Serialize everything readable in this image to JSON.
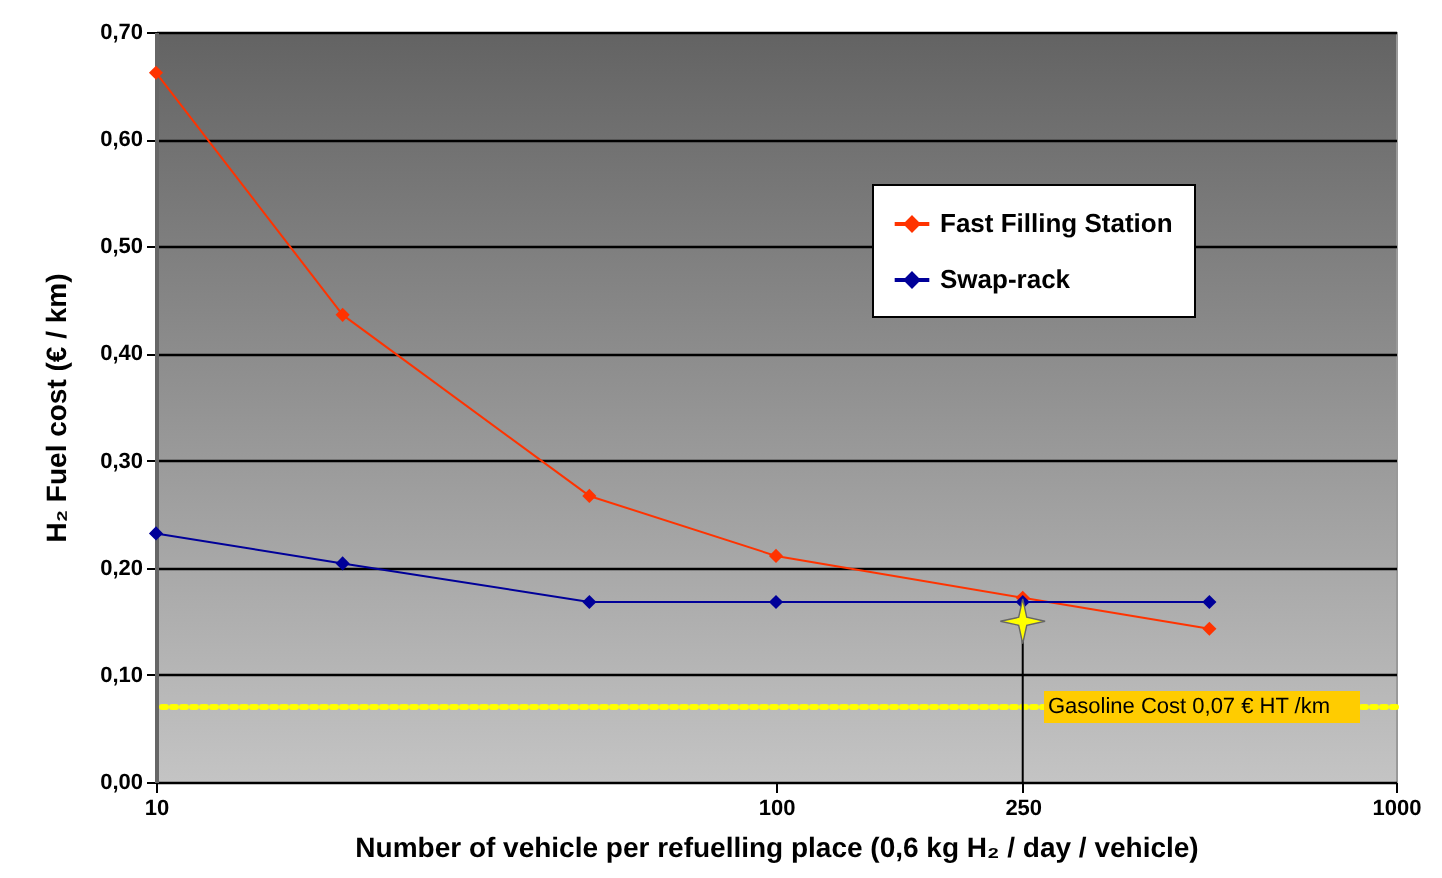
{
  "chart_data": {
    "type": "line",
    "xlabel": "Number of vehicle per refuelling place (0,6 kg H₂ / day / vehicle)",
    "ylabel": "H₂ Fuel cost (€ / km)",
    "x": [
      10,
      20,
      50,
      100,
      250,
      500
    ],
    "series": [
      {
        "name": "Fast Filling Station",
        "color": "#ff3300",
        "values": [
          0.662,
          0.436,
          0.267,
          0.211,
          0.172,
          0.143
        ]
      },
      {
        "name": "Swap-rack",
        "color": "#000099",
        "values": [
          0.232,
          0.204,
          0.168,
          0.168,
          0.168,
          0.168
        ]
      },
      {
        "type": "lollipop",
        "marker": "star",
        "color": "#ffff00",
        "x": [
          250
        ],
        "values": [
          0.15
        ]
      }
    ],
    "log": "x",
    "xlim": [
      10,
      1000
    ],
    "xticks": [
      10,
      100,
      250,
      1000
    ],
    "ylim": [
      0,
      0.7
    ],
    "yticks": [
      {
        "value": 0,
        "label": "0,00"
      },
      {
        "value": 0.1,
        "label": "0,10"
      },
      {
        "value": 0.2,
        "label": "0,20"
      },
      {
        "value": 0.3,
        "label": "0,30"
      },
      {
        "value": 0.4,
        "label": "0,40"
      },
      {
        "value": 0.5,
        "label": "0,50"
      },
      {
        "value": 0.6,
        "label": "0,60"
      },
      {
        "value": 0.7,
        "label": "0,70"
      }
    ],
    "ref_lines": [
      {
        "axis": "y",
        "value": 0.07,
        "label": "Gasoline Cost 0,07 € HT /km",
        "color": "#ffff00",
        "line_style": "dotted"
      }
    ],
    "grid": "y",
    "legend": "top right",
    "marker": "diamond"
  }
}
